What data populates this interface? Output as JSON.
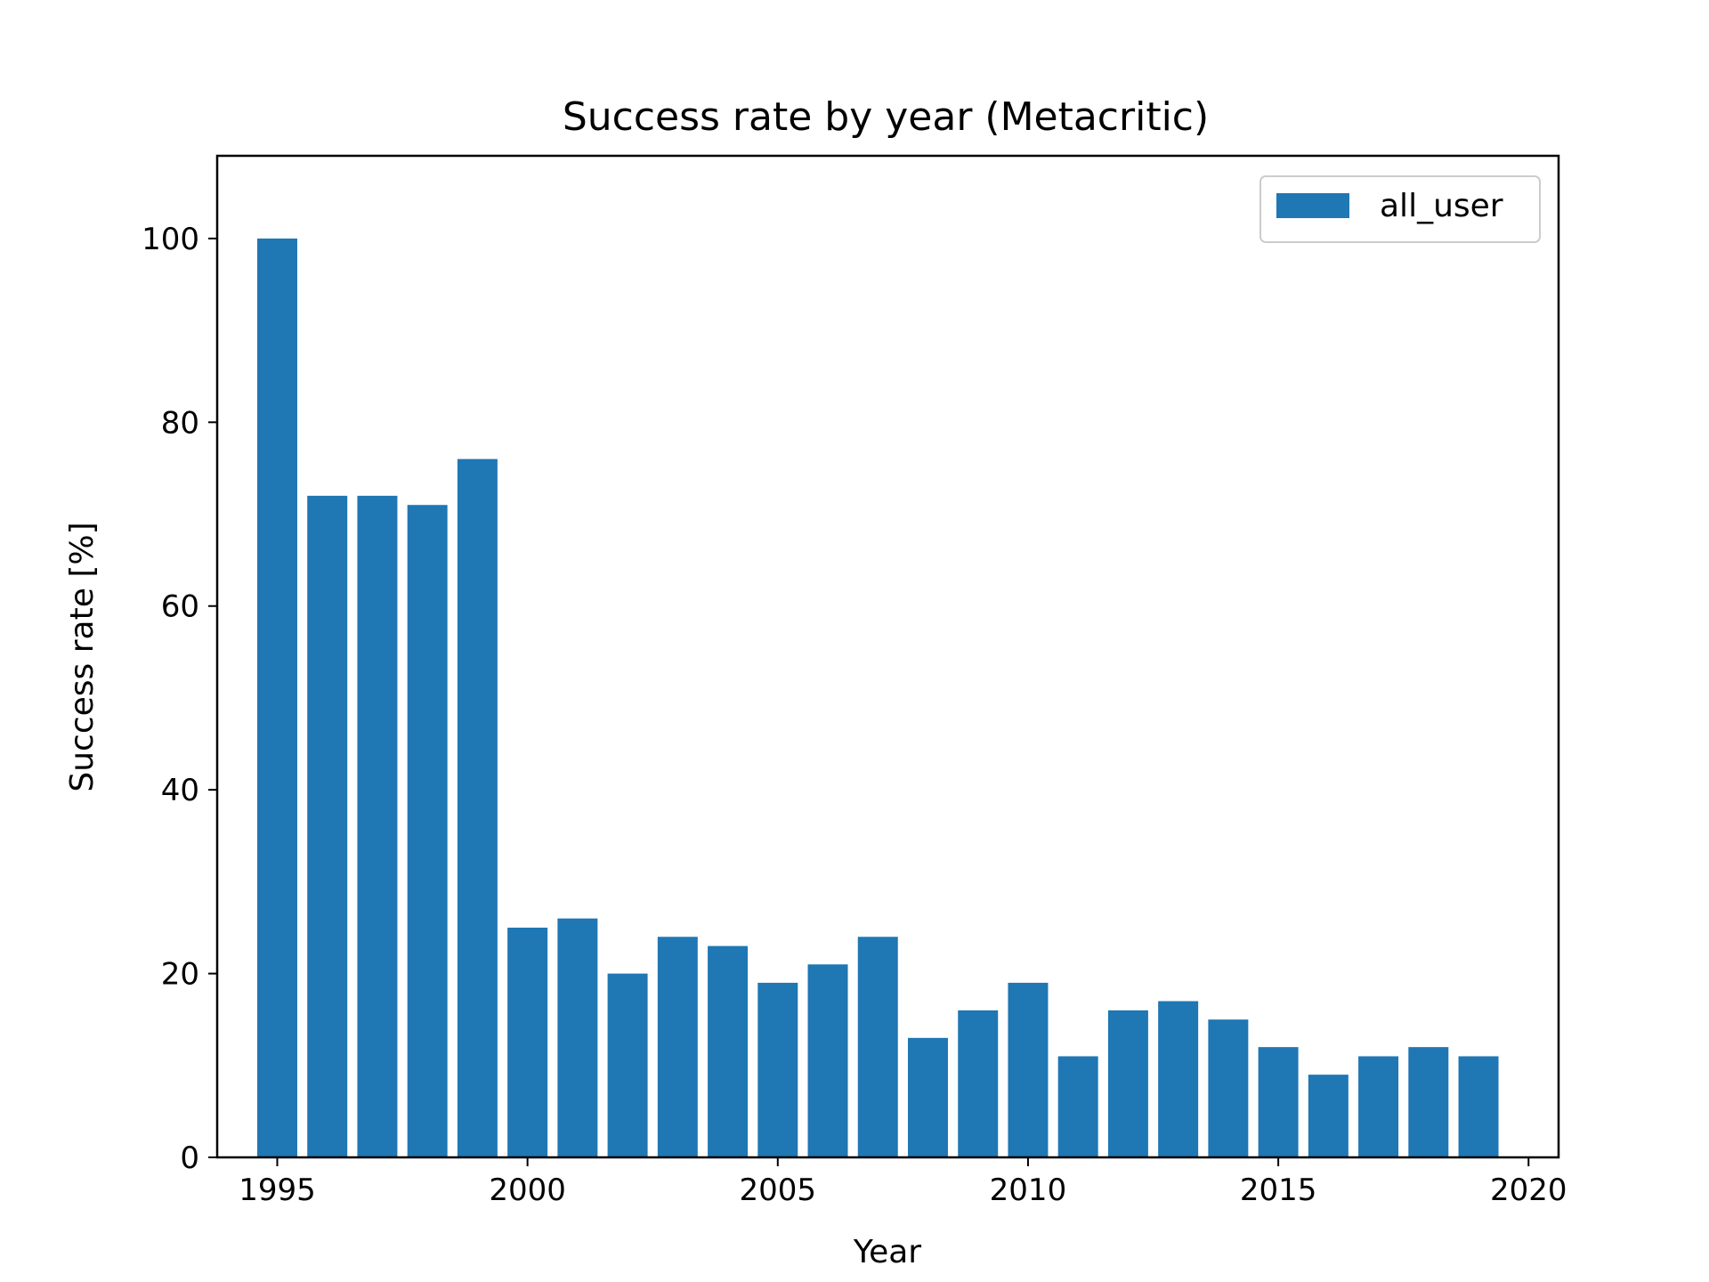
{
  "chart_data": {
    "type": "bar",
    "title": "Success rate by year (Metacritic)",
    "xlabel": "Year",
    "ylabel": "Success rate [%]",
    "xlim": [
      1993.8,
      2020.6
    ],
    "ylim": [
      0,
      109
    ],
    "xticks": [
      "1995",
      "2000",
      "2005",
      "2010",
      "2015",
      "2020"
    ],
    "yticks": [
      "0",
      "20",
      "40",
      "60",
      "80",
      "100"
    ],
    "grid": false,
    "legend_position": "top-right",
    "bar_color": "#1f77b4",
    "series": [
      {
        "name": "all_user",
        "x": [
          1995,
          1996,
          1997,
          1998,
          1999,
          2000,
          2001,
          2002,
          2003,
          2004,
          2005,
          2006,
          2007,
          2008,
          2009,
          2010,
          2011,
          2012,
          2013,
          2014,
          2015,
          2016,
          2017,
          2018,
          2019
        ],
        "values": [
          100,
          72,
          72,
          71,
          76,
          25,
          26,
          20,
          24,
          23,
          19,
          21,
          24,
          13,
          16,
          19,
          11,
          16,
          17,
          15,
          12,
          9,
          11,
          12,
          11
        ]
      }
    ]
  }
}
